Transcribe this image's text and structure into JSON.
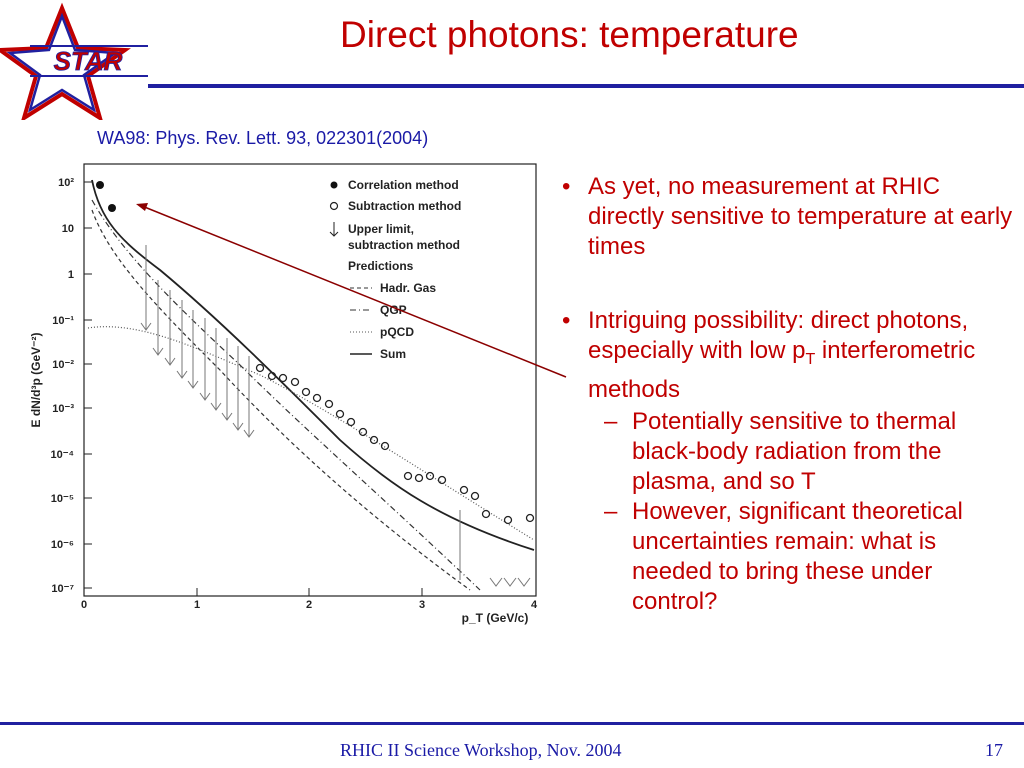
{
  "slide": {
    "title": "Direct photons: temperature",
    "logo_text": "STAR",
    "reference": "WA98: Phys. Rev. Lett. 93, 022301(2004)",
    "footer": "RHIC II Science Workshop, Nov. 2004",
    "page_number": "17",
    "colors": {
      "title": "#c00000",
      "rule": "#2020a0",
      "footer": "#1a1aa6",
      "arrow": "#8b0000"
    }
  },
  "bullets": {
    "a": {
      "marker": "•",
      "text": "As  yet, no measurement at RHIC directly sensitive to temperature at early times"
    },
    "b": {
      "marker": "•",
      "text_pre": "Intriguing possibility: direct photons, especially with low p",
      "subscript": "T",
      "text_post": " interferometric methods"
    },
    "sub1": {
      "marker": "–",
      "text": "Potentially sensitive to thermal black-body radiation from the plasma, and so T"
    },
    "sub2": {
      "marker": "–",
      "text": "However, significant theoretical uncertainties remain: what is needed to bring these under control?"
    }
  },
  "plot": {
    "ylabel": "E dN/d³p (GeV⁻²)",
    "xlabel": "p_T  (GeV/c)",
    "xticks": [
      "0",
      "1",
      "2",
      "3",
      "4"
    ],
    "yticks": [
      "10²",
      "10",
      "1",
      "10⁻¹",
      "10⁻²",
      "10⁻³",
      "10⁻⁴",
      "10⁻⁵",
      "10⁻⁶",
      "10⁻⁷"
    ],
    "legend": [
      "Correlation method",
      "Subtraction method",
      "Upper limit,",
      "subtraction method",
      "Predictions",
      "Hadr. Gas",
      "QGP",
      "pQCD",
      "Sum"
    ]
  }
}
